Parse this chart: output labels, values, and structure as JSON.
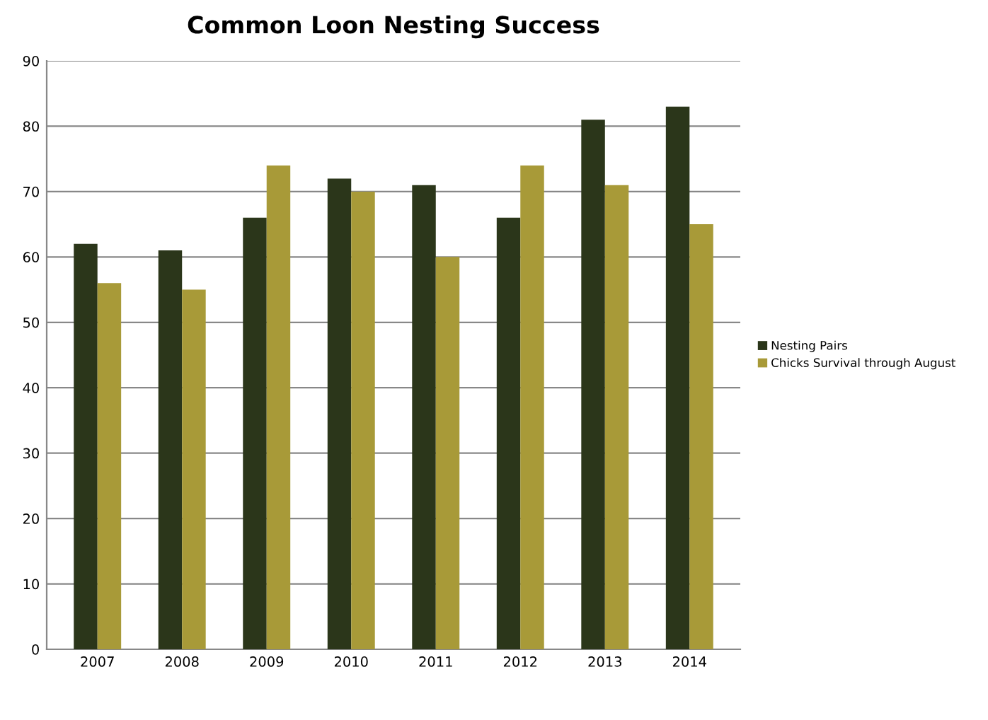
{
  "chart_data": {
    "type": "bar",
    "title": "Common Loon Nesting Success",
    "categories": [
      "2007",
      "2008",
      "2009",
      "2010",
      "2011",
      "2012",
      "2013",
      "2014"
    ],
    "series": [
      {
        "name": "Nesting Pairs",
        "color": "#2b361a",
        "values": [
          62,
          61,
          66,
          72,
          71,
          66,
          81,
          83
        ]
      },
      {
        "name": "Chicks Survival through August",
        "color": "#a89a38",
        "values": [
          56,
          55,
          74,
          70,
          60,
          74,
          71,
          65
        ]
      }
    ],
    "ylim": [
      0,
      90
    ],
    "yticks": [
      0,
      10,
      20,
      30,
      40,
      50,
      60,
      70,
      80,
      90
    ],
    "grid": "y",
    "legend": "right"
  }
}
